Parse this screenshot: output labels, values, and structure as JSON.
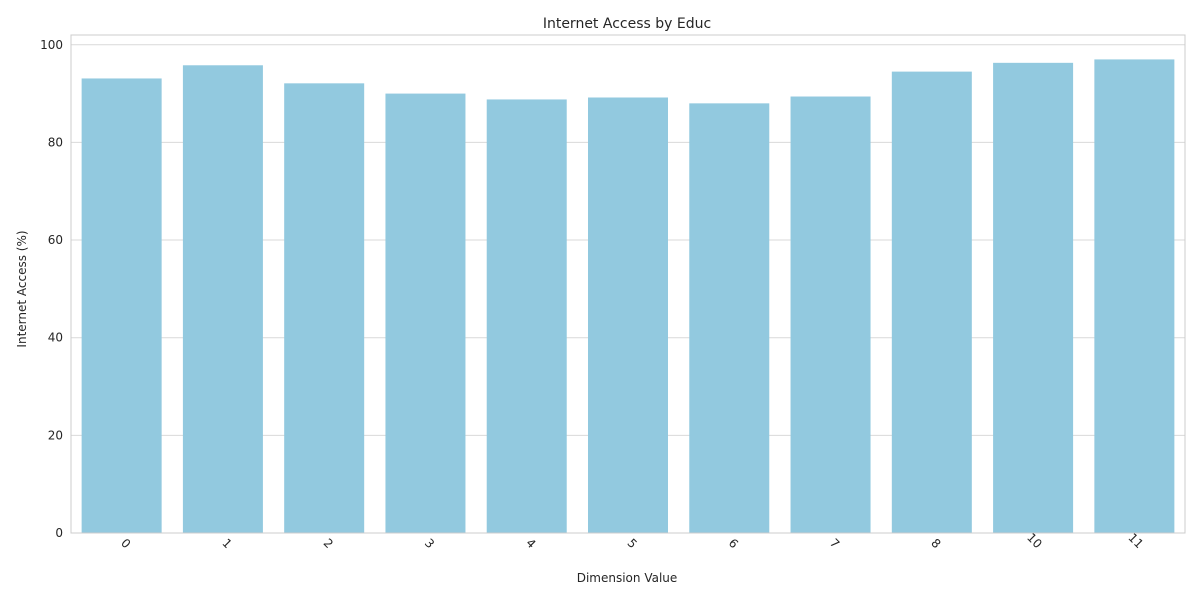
{
  "colors": {
    "bar": "#92c9df",
    "grid": "#d9d9d9",
    "axis_frame": "#cccccc",
    "text": "#262626"
  },
  "chart_data": {
    "type": "bar",
    "title": "Internet Access by Educ",
    "xlabel": "Dimension Value",
    "ylabel": "Internet Access (%)",
    "categories": [
      "0",
      "1",
      "2",
      "3",
      "4",
      "5",
      "6",
      "7",
      "8",
      "10",
      "11"
    ],
    "values": [
      93.1,
      95.8,
      92.1,
      90.0,
      88.8,
      89.2,
      88.0,
      89.4,
      94.5,
      96.3,
      97.0
    ],
    "ylim": [
      0,
      102
    ],
    "yticks": [
      0,
      20,
      40,
      60,
      80,
      100
    ],
    "grid": "horizontal",
    "xtick_rotation": 45
  }
}
